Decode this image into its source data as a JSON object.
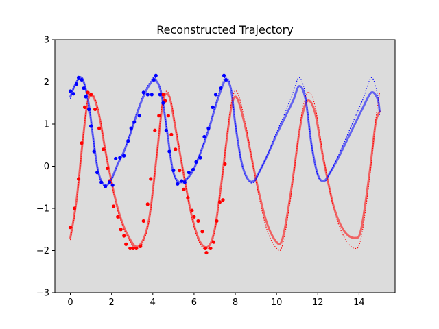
{
  "chart_data": {
    "type": "line",
    "title": "Reconstructed Trajectory",
    "xlabel": "",
    "ylabel": "",
    "xlim": [
      -0.75,
      15.75
    ],
    "ylim": [
      -3,
      3
    ],
    "xticks": [
      0,
      2,
      4,
      6,
      8,
      10,
      12,
      14
    ],
    "yticks": [
      -3,
      -2,
      -1,
      0,
      1,
      2,
      3
    ],
    "xtick_labels": [
      "0",
      "2",
      "4",
      "6",
      "8",
      "10",
      "12",
      "14"
    ],
    "ytick_labels": [
      "−3",
      "−2",
      "−1",
      "0",
      "1",
      "2",
      "3"
    ],
    "grid": false,
    "legend": "none",
    "background": "#dcdcdc",
    "series": [
      {
        "kind": "reconstructed",
        "color": "#ff0000",
        "x": [
          0,
          0.3,
          0.6,
          0.85,
          1.1,
          1.4,
          1.8,
          2.3,
          2.8,
          3.3,
          3.8,
          4.2,
          4.5,
          4.8,
          5.1,
          5.5,
          5.9,
          6.3,
          6.7,
          7.0,
          7.3,
          7.6,
          7.85,
          8.1,
          8.5,
          9.0,
          9.5,
          10.0,
          10.3,
          10.7,
          11.1,
          11.35,
          11.6,
          11.9,
          12.3,
          12.8,
          13.3,
          13.8,
          14.1,
          14.5,
          14.8,
          15.0
        ],
        "y": [
          -1.7,
          -0.8,
          0.6,
          1.55,
          1.65,
          1.2,
          0.1,
          -1.0,
          -1.65,
          -1.9,
          -1.3,
          0.3,
          1.55,
          1.65,
          0.9,
          -0.2,
          -1.2,
          -1.8,
          -1.9,
          -1.5,
          -0.5,
          0.7,
          1.5,
          1.6,
          0.9,
          -0.3,
          -1.3,
          -1.8,
          -1.7,
          -0.6,
          0.8,
          1.4,
          1.55,
          1.2,
          0.1,
          -1.0,
          -1.55,
          -1.7,
          -1.5,
          -0.2,
          1.0,
          1.3
        ]
      },
      {
        "kind": "true",
        "color": "#ff0000",
        "x": [
          0,
          0.3,
          0.6,
          0.85,
          1.1,
          1.4,
          1.8,
          2.3,
          2.8,
          3.3,
          3.8,
          4.2,
          4.5,
          4.8,
          5.1,
          5.5,
          5.9,
          6.3,
          6.7,
          7.0,
          7.3,
          7.6,
          7.85,
          8.1,
          8.5,
          9.0,
          9.5,
          10.0,
          10.3,
          10.7,
          11.1,
          11.35,
          11.6,
          11.9,
          12.3,
          12.8,
          13.3,
          13.8,
          14.1,
          14.5,
          14.8,
          15.0
        ],
        "y": [
          -1.75,
          -0.85,
          0.6,
          1.6,
          1.7,
          1.25,
          0.1,
          -1.05,
          -1.7,
          -1.95,
          -1.35,
          0.3,
          1.6,
          1.7,
          0.95,
          -0.2,
          -1.25,
          -1.85,
          -1.95,
          -1.55,
          -0.55,
          0.75,
          1.6,
          1.75,
          1.0,
          -0.35,
          -1.45,
          -1.95,
          -1.85,
          -0.7,
          0.85,
          1.55,
          1.75,
          1.35,
          0.15,
          -1.05,
          -1.7,
          -1.95,
          -1.7,
          -0.35,
          1.05,
          1.75
        ]
      },
      {
        "kind": "observed",
        "color": "#ff0000",
        "x": [
          0.0,
          0.2,
          0.4,
          0.55,
          0.7,
          0.85,
          1.0,
          1.2,
          1.4,
          1.6,
          1.8,
          1.9,
          2.1,
          2.3,
          2.45,
          2.6,
          2.7,
          2.9,
          3.05,
          3.2,
          3.4,
          3.55,
          3.75,
          3.9,
          4.1,
          4.3,
          4.5,
          4.6,
          4.75,
          4.9,
          5.1,
          5.3,
          5.5,
          5.7,
          5.9,
          6.0,
          6.2,
          6.4,
          6.55,
          6.6,
          6.8,
          6.95,
          7.1,
          7.25,
          7.4,
          7.5
        ],
        "y": [
          -1.45,
          -1.0,
          -0.3,
          0.55,
          1.4,
          1.75,
          1.7,
          1.35,
          0.9,
          0.4,
          -0.05,
          -0.35,
          -0.95,
          -1.2,
          -1.5,
          -1.65,
          -1.85,
          -1.95,
          -1.95,
          -1.95,
          -1.9,
          -1.3,
          -0.9,
          -0.3,
          0.85,
          1.2,
          1.7,
          1.55,
          1.2,
          0.75,
          0.4,
          -0.1,
          -0.55,
          -0.75,
          -1.05,
          -1.2,
          -1.3,
          -1.55,
          -1.95,
          -2.05,
          -1.95,
          -1.8,
          -1.3,
          -0.85,
          -0.8,
          0.05
        ]
      },
      {
        "kind": "reconstructed",
        "color": "#0000ff",
        "x": [
          0,
          0.2,
          0.45,
          0.65,
          0.9,
          1.1,
          1.3,
          1.5,
          1.75,
          2.0,
          2.3,
          2.6,
          2.9,
          3.2,
          3.5,
          3.8,
          4.1,
          4.4,
          4.7,
          4.95,
          5.2,
          5.5,
          5.9,
          6.3,
          6.7,
          7.0,
          7.3,
          7.55,
          7.8,
          8.0,
          8.3,
          8.6,
          8.9,
          9.2,
          9.6,
          10.0,
          10.4,
          10.8,
          11.1,
          11.4,
          11.7,
          12.0,
          12.3,
          12.6,
          13.0,
          13.4,
          13.8,
          14.2,
          14.6,
          14.9,
          15.0
        ],
        "y": [
          1.65,
          1.9,
          2.1,
          2.0,
          1.45,
          0.7,
          0.0,
          -0.35,
          -0.45,
          -0.3,
          0.05,
          0.35,
          0.75,
          1.2,
          1.6,
          1.9,
          2.05,
          1.75,
          0.8,
          -0.05,
          -0.35,
          -0.35,
          -0.15,
          0.3,
          0.85,
          1.35,
          1.8,
          2.05,
          1.8,
          1.0,
          0.1,
          -0.3,
          -0.35,
          -0.1,
          0.3,
          0.75,
          1.15,
          1.55,
          1.9,
          1.6,
          0.5,
          -0.2,
          -0.35,
          -0.15,
          0.2,
          0.6,
          1.0,
          1.4,
          1.75,
          1.6,
          1.3
        ]
      },
      {
        "kind": "true",
        "color": "#0000ff",
        "x": [
          0,
          0.2,
          0.45,
          0.65,
          0.9,
          1.1,
          1.3,
          1.5,
          1.75,
          2.0,
          2.3,
          2.6,
          2.9,
          3.2,
          3.5,
          3.8,
          4.1,
          4.4,
          4.7,
          4.95,
          5.2,
          5.5,
          5.9,
          6.3,
          6.7,
          7.0,
          7.3,
          7.55,
          7.8,
          8.0,
          8.3,
          8.6,
          8.9,
          9.2,
          9.6,
          10.0,
          10.4,
          10.8,
          11.1,
          11.4,
          11.7,
          12.0,
          12.3,
          12.6,
          13.0,
          13.4,
          13.8,
          14.2,
          14.6,
          14.9,
          15.0
        ],
        "y": [
          1.6,
          1.9,
          2.12,
          2.0,
          1.45,
          0.7,
          0.0,
          -0.38,
          -0.48,
          -0.32,
          0.05,
          0.35,
          0.78,
          1.25,
          1.65,
          1.95,
          2.1,
          1.78,
          0.8,
          -0.05,
          -0.38,
          -0.38,
          -0.15,
          0.32,
          0.9,
          1.4,
          1.88,
          2.12,
          1.85,
          1.02,
          0.1,
          -0.32,
          -0.38,
          -0.1,
          0.32,
          0.8,
          1.25,
          1.75,
          2.1,
          1.7,
          0.5,
          -0.22,
          -0.38,
          -0.15,
          0.25,
          0.7,
          1.15,
          1.6,
          2.1,
          1.7,
          1.2
        ]
      },
      {
        "kind": "observed",
        "color": "#0000ff",
        "x": [
          0.0,
          0.15,
          0.3,
          0.4,
          0.55,
          0.65,
          0.75,
          0.9,
          1.0,
          1.15,
          1.3,
          1.5,
          1.7,
          1.9,
          2.05,
          2.2,
          2.4,
          2.6,
          2.8,
          2.95,
          3.1,
          3.35,
          3.55,
          3.75,
          3.95,
          4.05,
          4.15,
          4.35,
          4.5,
          4.65,
          4.8,
          5.0,
          5.2,
          5.4,
          5.55,
          5.75,
          5.95,
          6.1,
          6.3,
          6.5,
          6.7,
          6.9,
          7.05,
          7.3,
          7.45,
          7.55
        ],
        "y": [
          1.78,
          1.72,
          1.95,
          2.1,
          2.05,
          1.85,
          1.65,
          1.35,
          0.95,
          0.35,
          -0.15,
          -0.38,
          -0.48,
          -0.38,
          -0.45,
          0.18,
          0.2,
          0.25,
          0.6,
          0.9,
          1.05,
          1.2,
          1.75,
          1.7,
          1.7,
          2.05,
          2.15,
          1.7,
          1.5,
          0.85,
          0.35,
          -0.1,
          -0.42,
          -0.35,
          -0.38,
          -0.15,
          -0.08,
          0.1,
          0.2,
          0.7,
          0.9,
          1.4,
          1.7,
          1.85,
          2.15,
          2.05
        ]
      }
    ]
  }
}
